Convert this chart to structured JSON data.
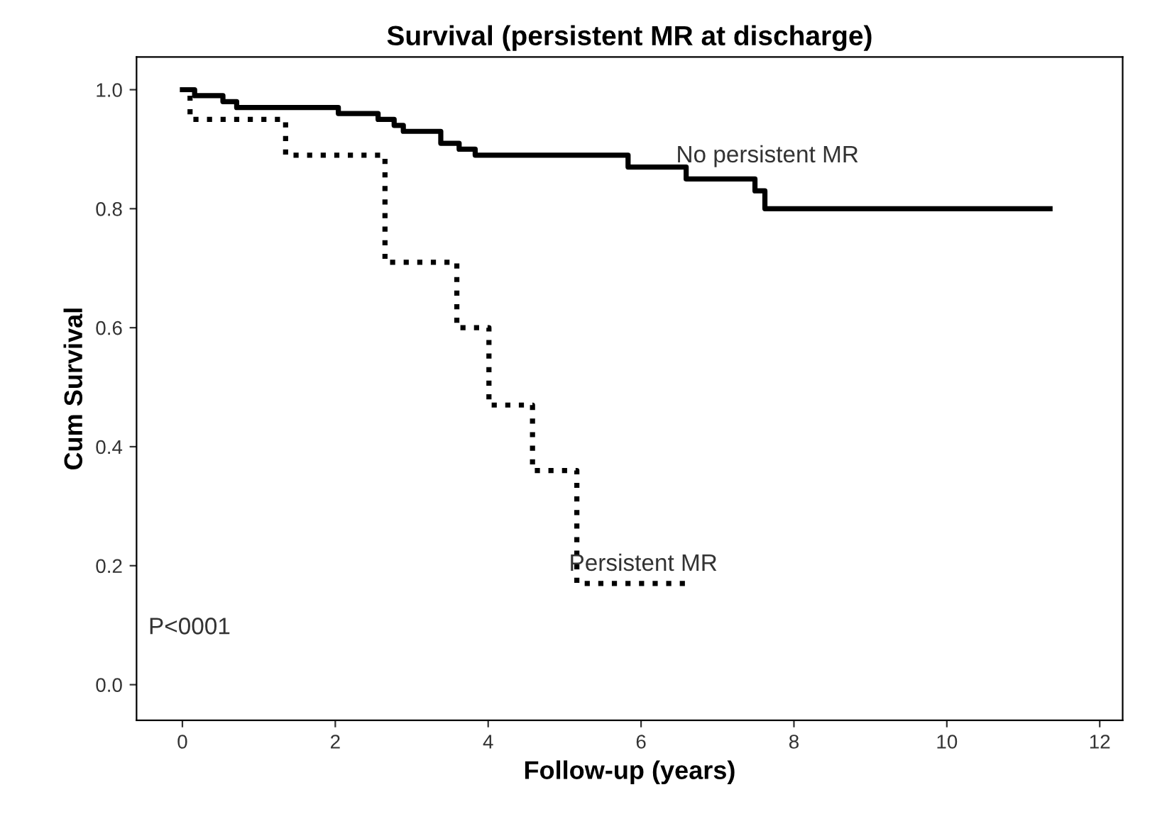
{
  "chart_data": {
    "type": "step",
    "title": "Survival (persistent MR at discharge)",
    "xlabel": "Follow-up (years)",
    "ylabel": "Cum Survival",
    "annotations": [
      "P<0001"
    ],
    "xlim": [
      -0.6,
      12.3
    ],
    "ylim": [
      -0.06,
      1.055
    ],
    "xticks": [
      0,
      2,
      4,
      6,
      8,
      10,
      12
    ],
    "yticks": [
      {
        "value": 0,
        "label": "0.0"
      },
      {
        "value": 0.2,
        "label": "0.2"
      },
      {
        "value": 0.4,
        "label": "0.4"
      },
      {
        "value": 0.6,
        "label": "0.6"
      },
      {
        "value": 0.8,
        "label": "0.8"
      },
      {
        "value": 1,
        "label": "1.0"
      }
    ],
    "grid": false,
    "legend": false,
    "series": [
      {
        "name": "No persistent MR",
        "color": "#000000",
        "line_style": "solid",
        "x": [
          0,
          0.16,
          0.53,
          0.71,
          2.04,
          2.56,
          2.77,
          2.89,
          3.38,
          3.62,
          3.83,
          5.83,
          6.59,
          7.49,
          7.62,
          11.35
        ],
        "values": [
          1.0,
          0.99,
          0.98,
          0.97,
          0.96,
          0.95,
          0.94,
          0.93,
          0.91,
          0.9,
          0.89,
          0.87,
          0.85,
          0.83,
          0.8,
          0.8
        ]
      },
      {
        "name": "Persistent MR",
        "color": "#000000",
        "line_style": "dotted",
        "x": [
          0,
          0.1,
          1.35,
          2.65,
          3.59,
          4.01,
          4.58,
          5.16,
          6.62
        ],
        "values": [
          1.0,
          0.95,
          0.89,
          0.71,
          0.6,
          0.47,
          0.36,
          0.17,
          0.17
        ]
      }
    ]
  }
}
